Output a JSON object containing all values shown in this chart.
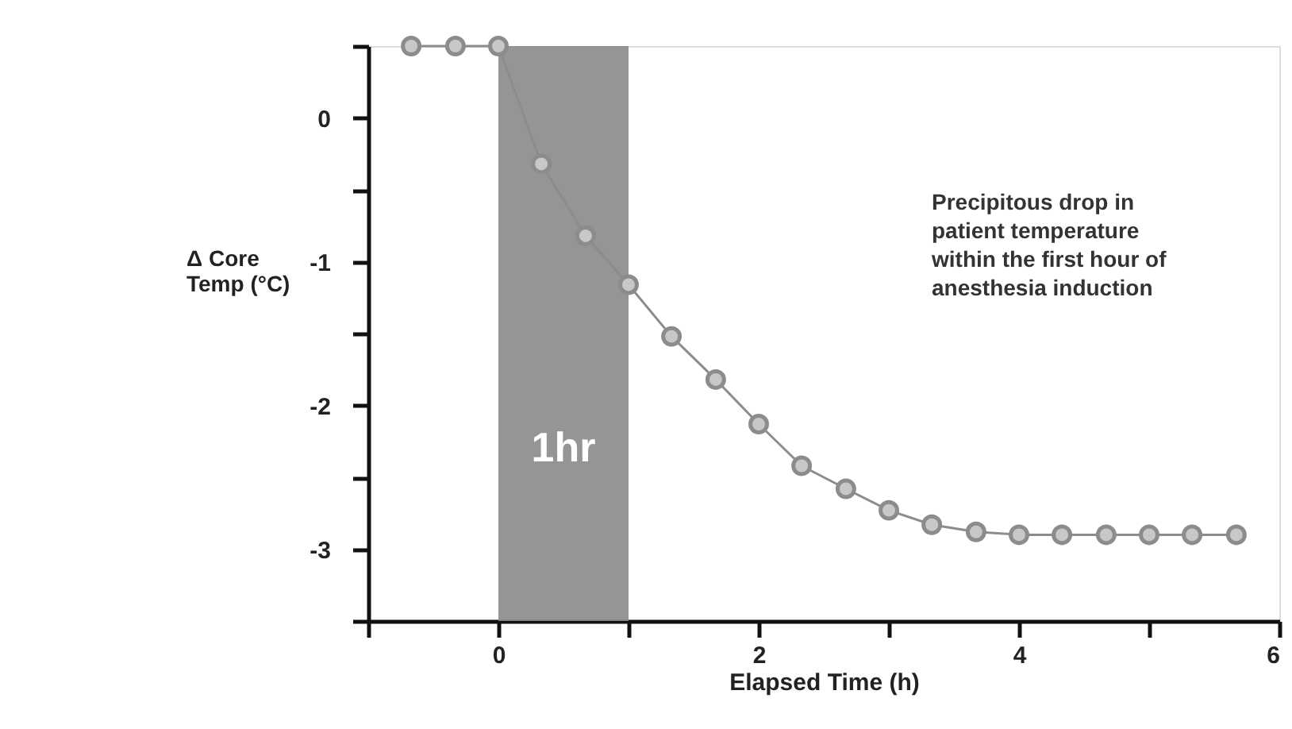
{
  "chart_data": {
    "type": "line",
    "xlabel": "Elapsed Time (h)",
    "ylabel": "Δ Core Temp (°C)",
    "x": [
      -0.67,
      -0.33,
      0,
      0.33,
      0.67,
      1.0,
      1.33,
      1.67,
      2.0,
      2.33,
      2.67,
      3.0,
      3.33,
      3.67,
      4.0,
      4.33,
      4.67,
      5.0,
      5.33,
      5.67
    ],
    "series": [
      {
        "color": "#8c8c8c",
        "values": [
          0.5,
          0.5,
          0.5,
          -0.32,
          -0.82,
          -1.16,
          -1.52,
          -1.82,
          -2.13,
          -2.42,
          -2.58,
          -2.73,
          -2.83,
          -2.88,
          -2.9,
          -2.9,
          -2.9,
          -2.9,
          -2.9,
          -2.9
        ]
      }
    ],
    "xlim": [
      -1,
      6
    ],
    "xticks": [
      {
        "value": -1,
        "label": null
      },
      0,
      {
        "value": 1,
        "label": null
      },
      2,
      {
        "value": 3,
        "label": null
      },
      4,
      {
        "value": 5,
        "label": null
      },
      6
    ],
    "ylim": [
      -3.5,
      0.5
    ],
    "yticks": [
      {
        "value": -3.5,
        "label": null
      },
      -3,
      {
        "value": -2.5,
        "label": null
      },
      -2,
      {
        "value": -1.5,
        "label": null
      },
      -1,
      {
        "value": -0.5,
        "label": null
      },
      0,
      {
        "value": 0.5,
        "label": null
      }
    ],
    "bands": [
      {
        "axis": "x",
        "from": 0,
        "to": 1,
        "label": "1hr",
        "color": "#8a8a8a"
      }
    ],
    "annotations": [
      "Precipitous drop in patient temperature within the first hour of anesthesia induction"
    ],
    "marker": "circle",
    "line_style": "solid"
  }
}
